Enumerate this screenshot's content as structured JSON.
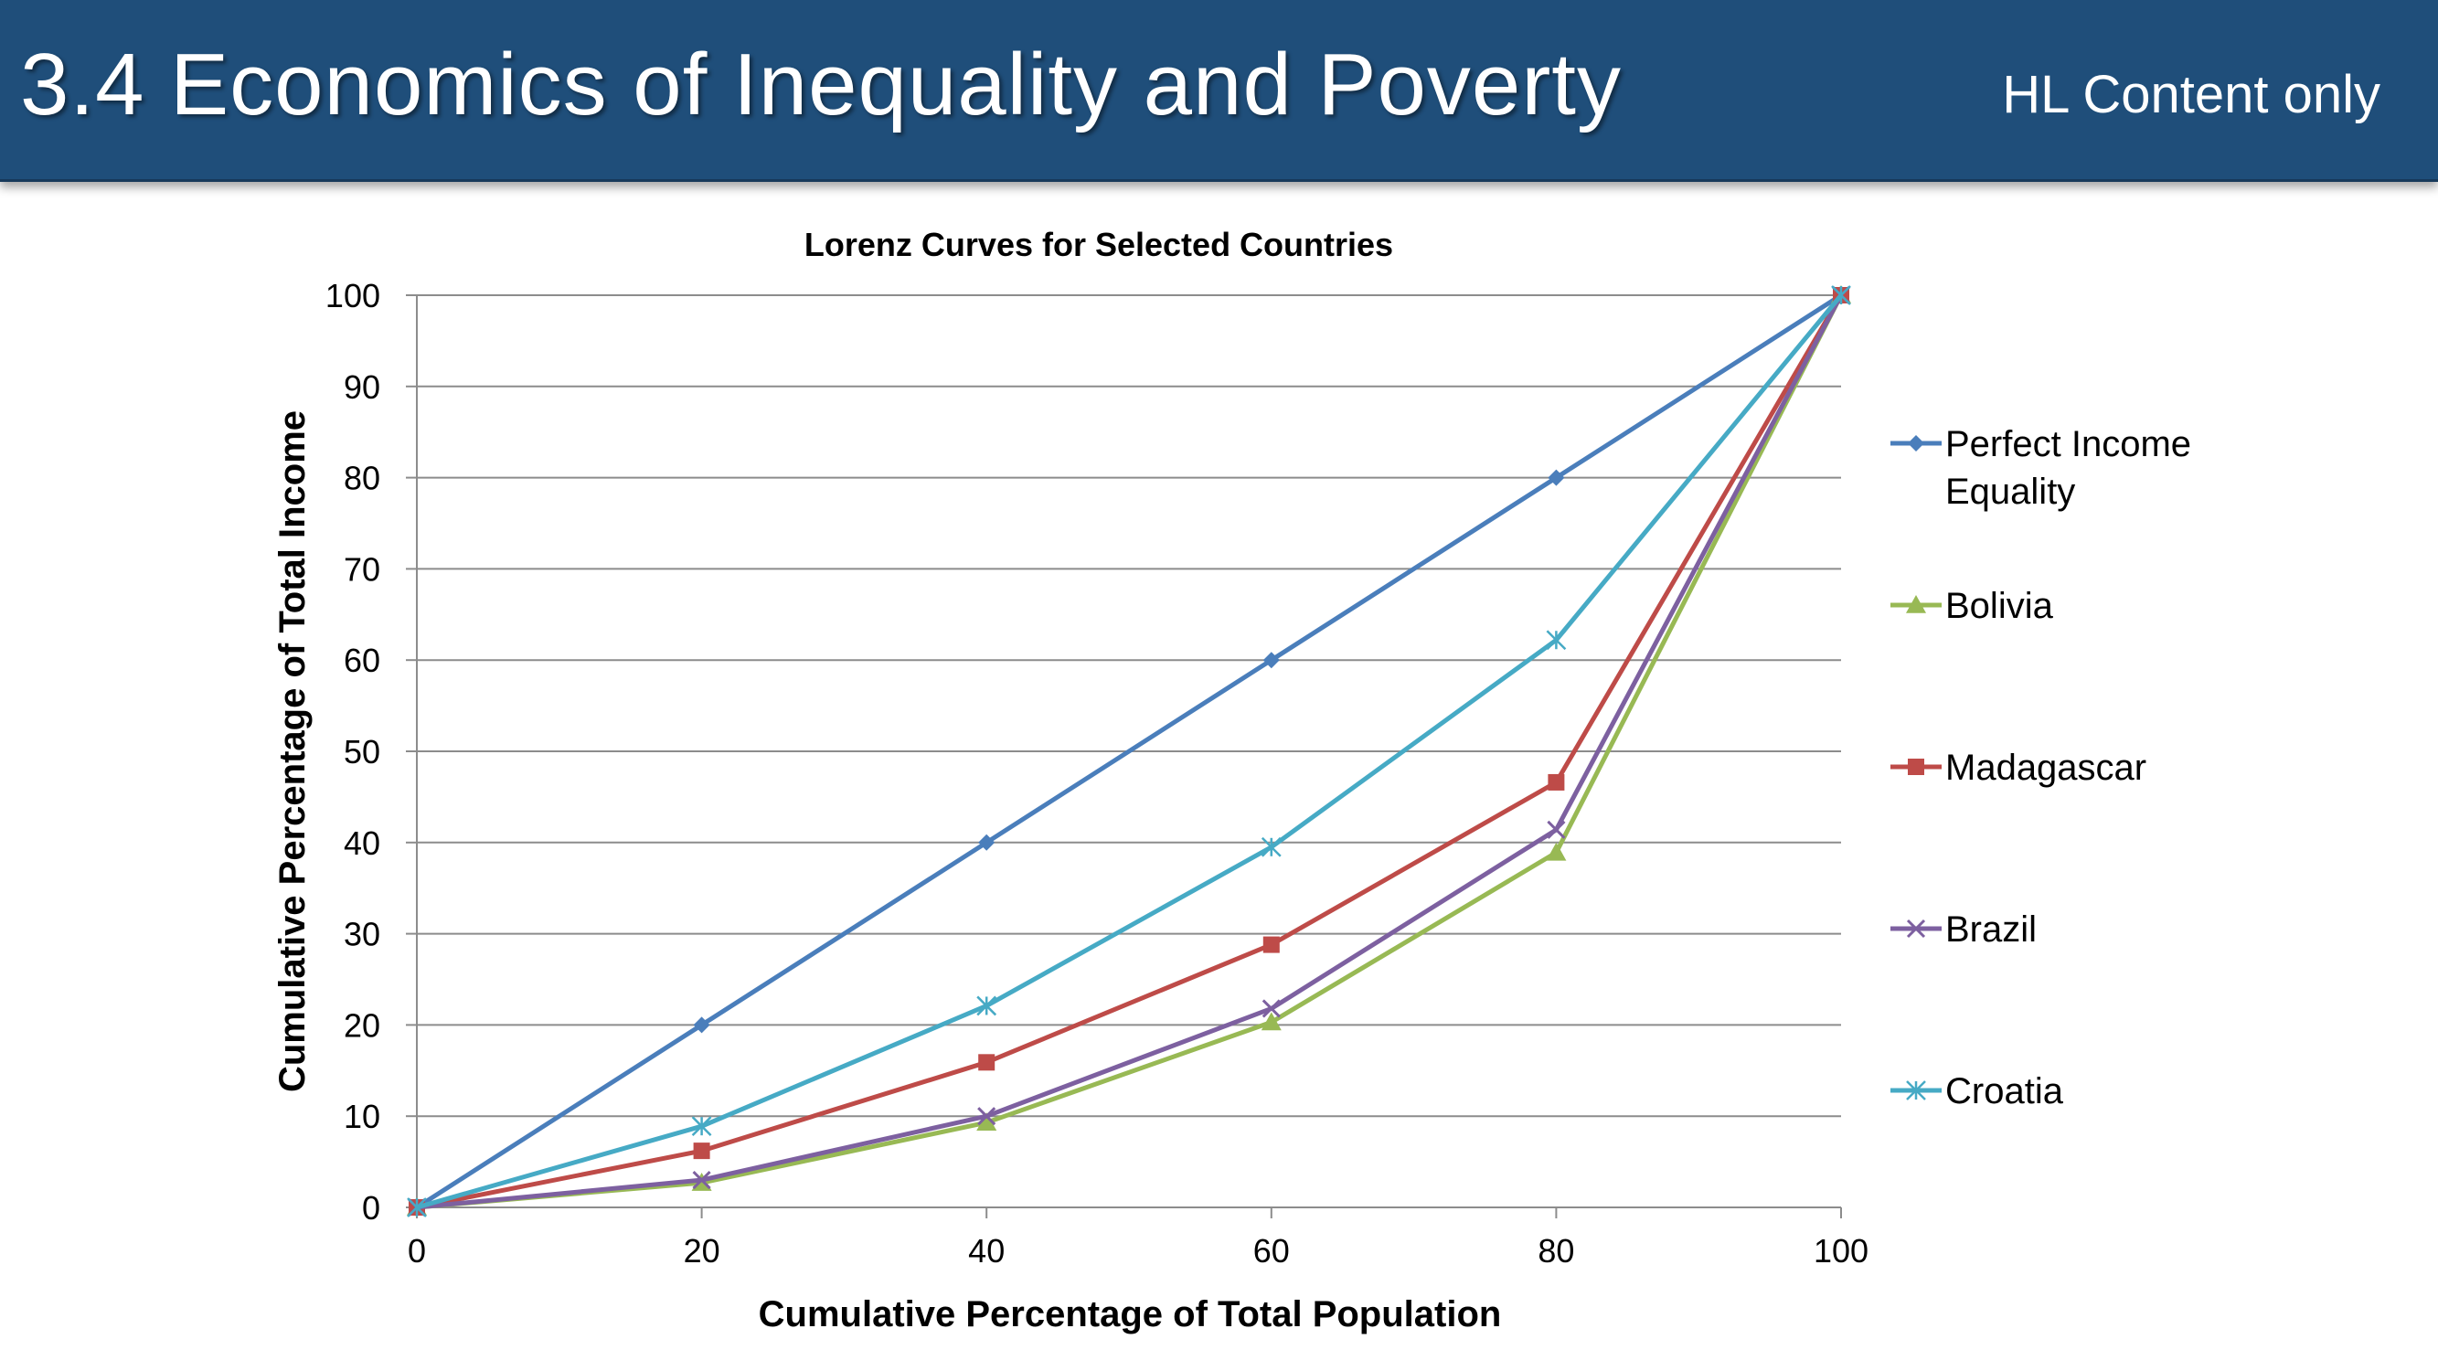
{
  "header": {
    "title": "3.4 Economics of Inequality and Poverty",
    "subtitle": "HL Content only",
    "background": "#1f4e7a"
  },
  "chart_data": {
    "type": "line",
    "title": "Lorenz Curves for Selected Countries",
    "xlabel": "Cumulative Percentage of Total Population",
    "ylabel": "Cumulative Percentage of Total Income",
    "x": [
      0,
      20,
      40,
      60,
      80,
      100
    ],
    "xlim": [
      0,
      100
    ],
    "ylim": [
      0,
      100
    ],
    "xticks": [
      0,
      20,
      40,
      60,
      80,
      100
    ],
    "yticks": [
      0,
      10,
      20,
      30,
      40,
      50,
      60,
      70,
      80,
      90,
      100
    ],
    "grid": "horizontal",
    "legend_position": "right",
    "series": [
      {
        "name": "Perfect Income Equality",
        "values": [
          0,
          20,
          40,
          60,
          80,
          100
        ],
        "color": "#4a7ebb",
        "marker": "diamond"
      },
      {
        "name": "Bolivia",
        "values": [
          0,
          2.7,
          9.3,
          20.3,
          38.9,
          100
        ],
        "color": "#98b954",
        "marker": "triangle"
      },
      {
        "name": "Madagascar",
        "values": [
          0,
          6.2,
          15.9,
          28.8,
          46.6,
          100
        ],
        "color": "#be4b48",
        "marker": "square"
      },
      {
        "name": "Brazil",
        "values": [
          0,
          3.0,
          10.0,
          21.8,
          41.4,
          100
        ],
        "color": "#7d60a0",
        "marker": "x"
      },
      {
        "name": "Croatia",
        "values": [
          0,
          8.9,
          22.1,
          39.5,
          62.2,
          100
        ],
        "color": "#46aac5",
        "marker": "star"
      }
    ]
  }
}
